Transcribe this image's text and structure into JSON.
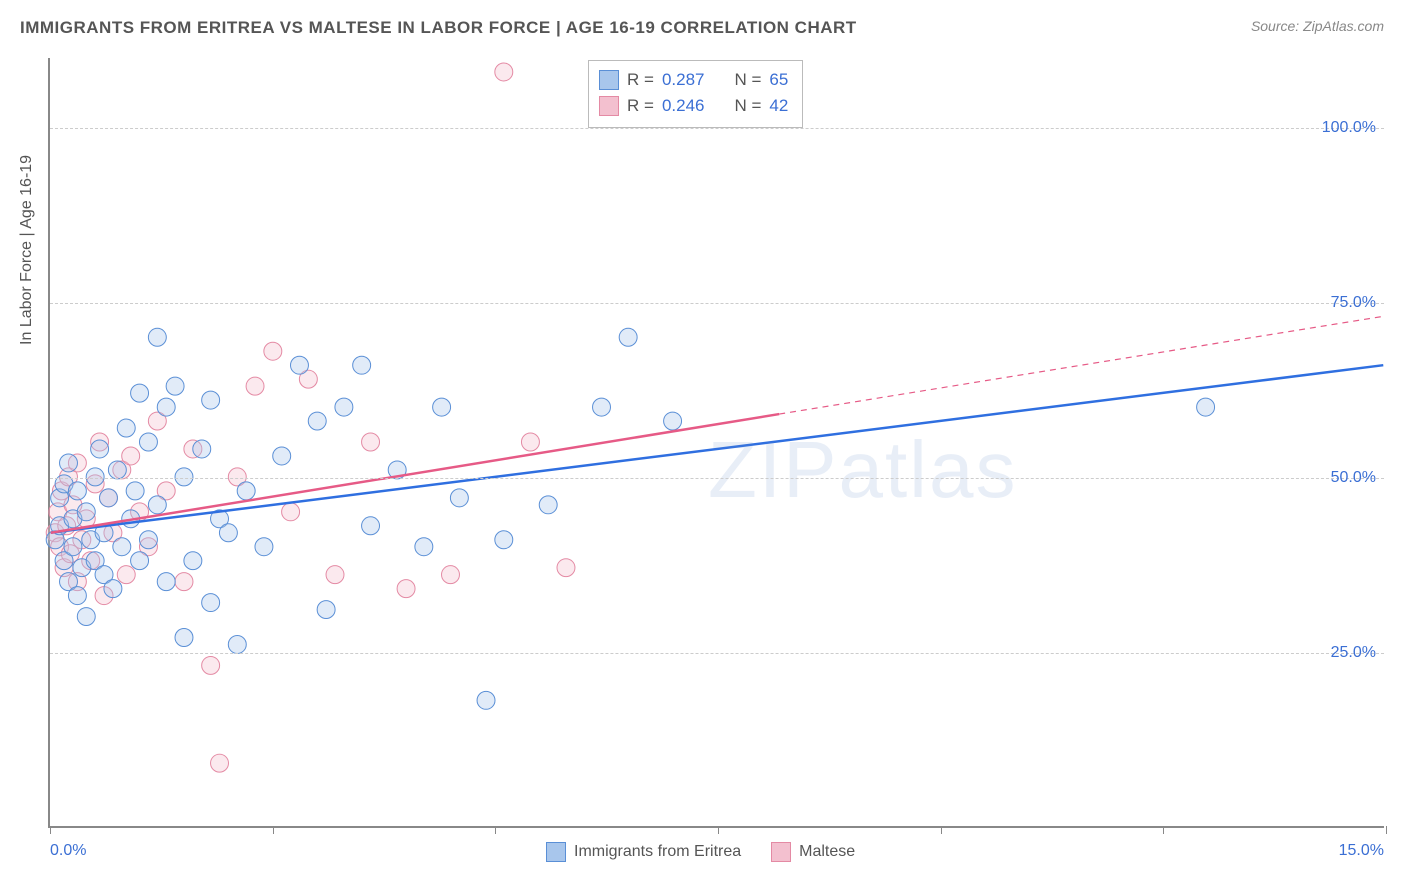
{
  "title": "IMMIGRANTS FROM ERITREA VS MALTESE IN LABOR FORCE | AGE 16-19 CORRELATION CHART",
  "source_prefix": "Source: ",
  "source_name": "ZipAtlas.com",
  "ylabel": "In Labor Force | Age 16-19",
  "watermark": "ZIPatlas",
  "chart": {
    "type": "scatter",
    "background_color": "#ffffff",
    "grid_color": "#cccccc",
    "axis_color": "#888888",
    "label_color_axis": "#3b6fd4",
    "label_fontsize": 16,
    "title_fontsize": 17,
    "xlim": [
      0,
      15
    ],
    "ylim": [
      0,
      110
    ],
    "x_ticks": [
      0,
      2.5,
      5,
      7.5,
      10,
      12.5,
      15
    ],
    "x_tick_labels": {
      "0": "0.0%",
      "15": "15.0%"
    },
    "y_grid": [
      25,
      50,
      75,
      100
    ],
    "y_tick_labels": {
      "25": "25.0%",
      "50": "50.0%",
      "75": "75.0%",
      "100": "100.0%"
    },
    "marker_radius": 9,
    "marker_stroke_width": 1,
    "marker_fill_opacity": 0.35,
    "trend_line_width_solid": 2.5,
    "trend_line_width_dash": 1.2,
    "trend_dash": "6,5"
  },
  "series": {
    "eritrea": {
      "label": "Immigrants from Eritrea",
      "color_stroke": "#5a8fd6",
      "color_fill": "#a8c6ec",
      "trend_color": "#2f6fe0",
      "R": "0.287",
      "N": "65",
      "trend": {
        "x1": 0,
        "y1": 42,
        "x2": 15,
        "y2": 66
      },
      "points": [
        [
          0.05,
          41
        ],
        [
          0.1,
          43
        ],
        [
          0.1,
          47
        ],
        [
          0.15,
          38
        ],
        [
          0.15,
          49
        ],
        [
          0.2,
          35
        ],
        [
          0.2,
          52
        ],
        [
          0.25,
          40
        ],
        [
          0.25,
          44
        ],
        [
          0.3,
          33
        ],
        [
          0.3,
          48
        ],
        [
          0.35,
          37
        ],
        [
          0.4,
          45
        ],
        [
          0.4,
          30
        ],
        [
          0.45,
          41
        ],
        [
          0.5,
          38
        ],
        [
          0.5,
          50
        ],
        [
          0.55,
          54
        ],
        [
          0.6,
          36
        ],
        [
          0.6,
          42
        ],
        [
          0.65,
          47
        ],
        [
          0.7,
          34
        ],
        [
          0.75,
          51
        ],
        [
          0.8,
          40
        ],
        [
          0.85,
          57
        ],
        [
          0.9,
          44
        ],
        [
          0.95,
          48
        ],
        [
          1.0,
          62
        ],
        [
          1.0,
          38
        ],
        [
          1.1,
          55
        ],
        [
          1.1,
          41
        ],
        [
          1.2,
          70
        ],
        [
          1.2,
          46
        ],
        [
          1.3,
          60
        ],
        [
          1.3,
          35
        ],
        [
          1.4,
          63
        ],
        [
          1.5,
          50
        ],
        [
          1.5,
          27
        ],
        [
          1.6,
          38
        ],
        [
          1.7,
          54
        ],
        [
          1.8,
          61
        ],
        [
          1.8,
          32
        ],
        [
          1.9,
          44
        ],
        [
          2.0,
          42
        ],
        [
          2.1,
          26
        ],
        [
          2.2,
          48
        ],
        [
          2.4,
          40
        ],
        [
          2.6,
          53
        ],
        [
          2.8,
          66
        ],
        [
          3.0,
          58
        ],
        [
          3.1,
          31
        ],
        [
          3.3,
          60
        ],
        [
          3.5,
          66
        ],
        [
          3.6,
          43
        ],
        [
          3.9,
          51
        ],
        [
          4.2,
          40
        ],
        [
          4.4,
          60
        ],
        [
          4.6,
          47
        ],
        [
          4.9,
          18
        ],
        [
          5.1,
          41
        ],
        [
          5.6,
          46
        ],
        [
          6.2,
          60
        ],
        [
          6.5,
          70
        ],
        [
          7.0,
          58
        ],
        [
          13.0,
          60
        ]
      ]
    },
    "maltese": {
      "label": "Maltese",
      "color_stroke": "#e48aa4",
      "color_fill": "#f3c0cf",
      "trend_color": "#e65a86",
      "R": "0.246",
      "N": "42",
      "trend_solid": {
        "x1": 0,
        "y1": 42,
        "x2": 8.2,
        "y2": 59
      },
      "trend_dash": {
        "x1": 8.2,
        "y1": 59,
        "x2": 15,
        "y2": 73
      },
      "points": [
        [
          0.05,
          42
        ],
        [
          0.08,
          45
        ],
        [
          0.1,
          40
        ],
        [
          0.12,
          48
        ],
        [
          0.15,
          37
        ],
        [
          0.18,
          43
        ],
        [
          0.2,
          50
        ],
        [
          0.22,
          39
        ],
        [
          0.25,
          46
        ],
        [
          0.3,
          35
        ],
        [
          0.3,
          52
        ],
        [
          0.35,
          41
        ],
        [
          0.4,
          44
        ],
        [
          0.45,
          38
        ],
        [
          0.5,
          49
        ],
        [
          0.55,
          55
        ],
        [
          0.6,
          33
        ],
        [
          0.65,
          47
        ],
        [
          0.7,
          42
        ],
        [
          0.8,
          51
        ],
        [
          0.85,
          36
        ],
        [
          0.9,
          53
        ],
        [
          1.0,
          45
        ],
        [
          1.1,
          40
        ],
        [
          1.2,
          58
        ],
        [
          1.3,
          48
        ],
        [
          1.5,
          35
        ],
        [
          1.6,
          54
        ],
        [
          1.8,
          23
        ],
        [
          1.9,
          9
        ],
        [
          2.1,
          50
        ],
        [
          2.3,
          63
        ],
        [
          2.5,
          68
        ],
        [
          2.7,
          45
        ],
        [
          2.9,
          64
        ],
        [
          3.2,
          36
        ],
        [
          3.6,
          55
        ],
        [
          4.0,
          34
        ],
        [
          4.5,
          36
        ],
        [
          5.1,
          108
        ],
        [
          5.4,
          55
        ],
        [
          5.8,
          37
        ]
      ]
    }
  },
  "legend_top": {
    "r_label": "R =",
    "n_label": "N ="
  }
}
